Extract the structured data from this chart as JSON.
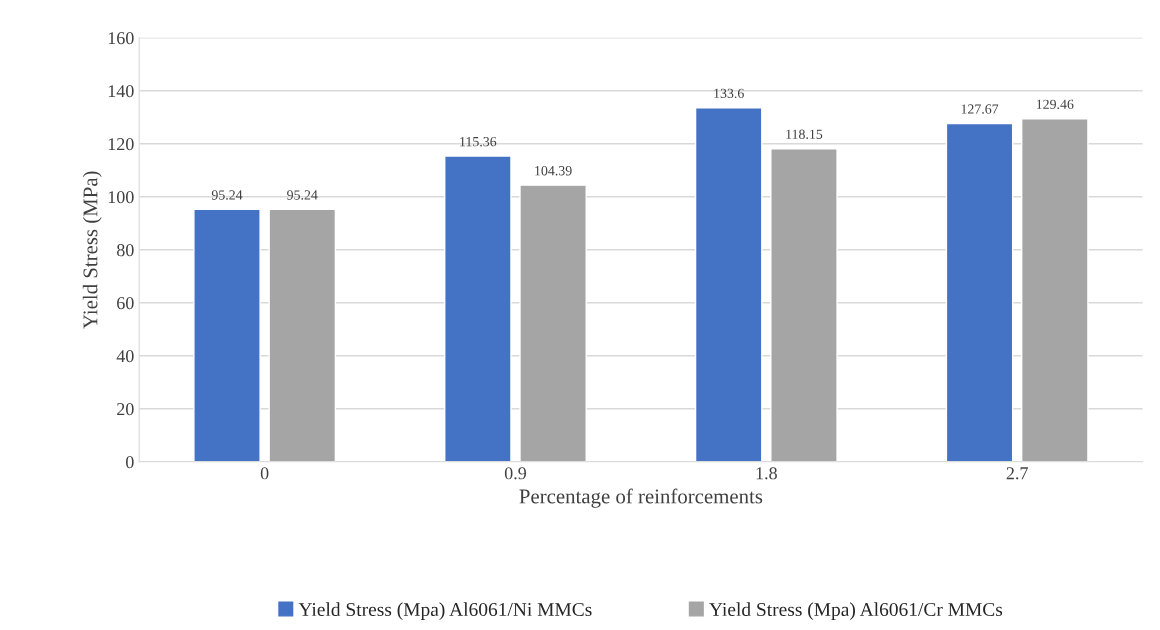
{
  "chart_data": {
    "type": "bar",
    "xlabel": "Percentage of reinforcements",
    "ylabel": "Yield Stress (MPa)",
    "categories": [
      "0",
      "0.9",
      "1.8",
      "2.7"
    ],
    "series": [
      {
        "name": "Yield Stress (Mpa) Al6061/Ni MMCs",
        "color": "#4472c4",
        "values": [
          95.24,
          115.36,
          133.6,
          127.67
        ]
      },
      {
        "name": "Yield Stress (Mpa) Al6061/Cr MMCs",
        "color": "#a5a5a5",
        "values": [
          95.24,
          104.39,
          118.15,
          129.46
        ]
      }
    ],
    "ylim": [
      0,
      160
    ],
    "yticks": [
      0,
      20,
      40,
      60,
      80,
      100,
      120,
      140,
      160
    ],
    "grid": "y",
    "legend": "bottom",
    "data_labels": true
  }
}
